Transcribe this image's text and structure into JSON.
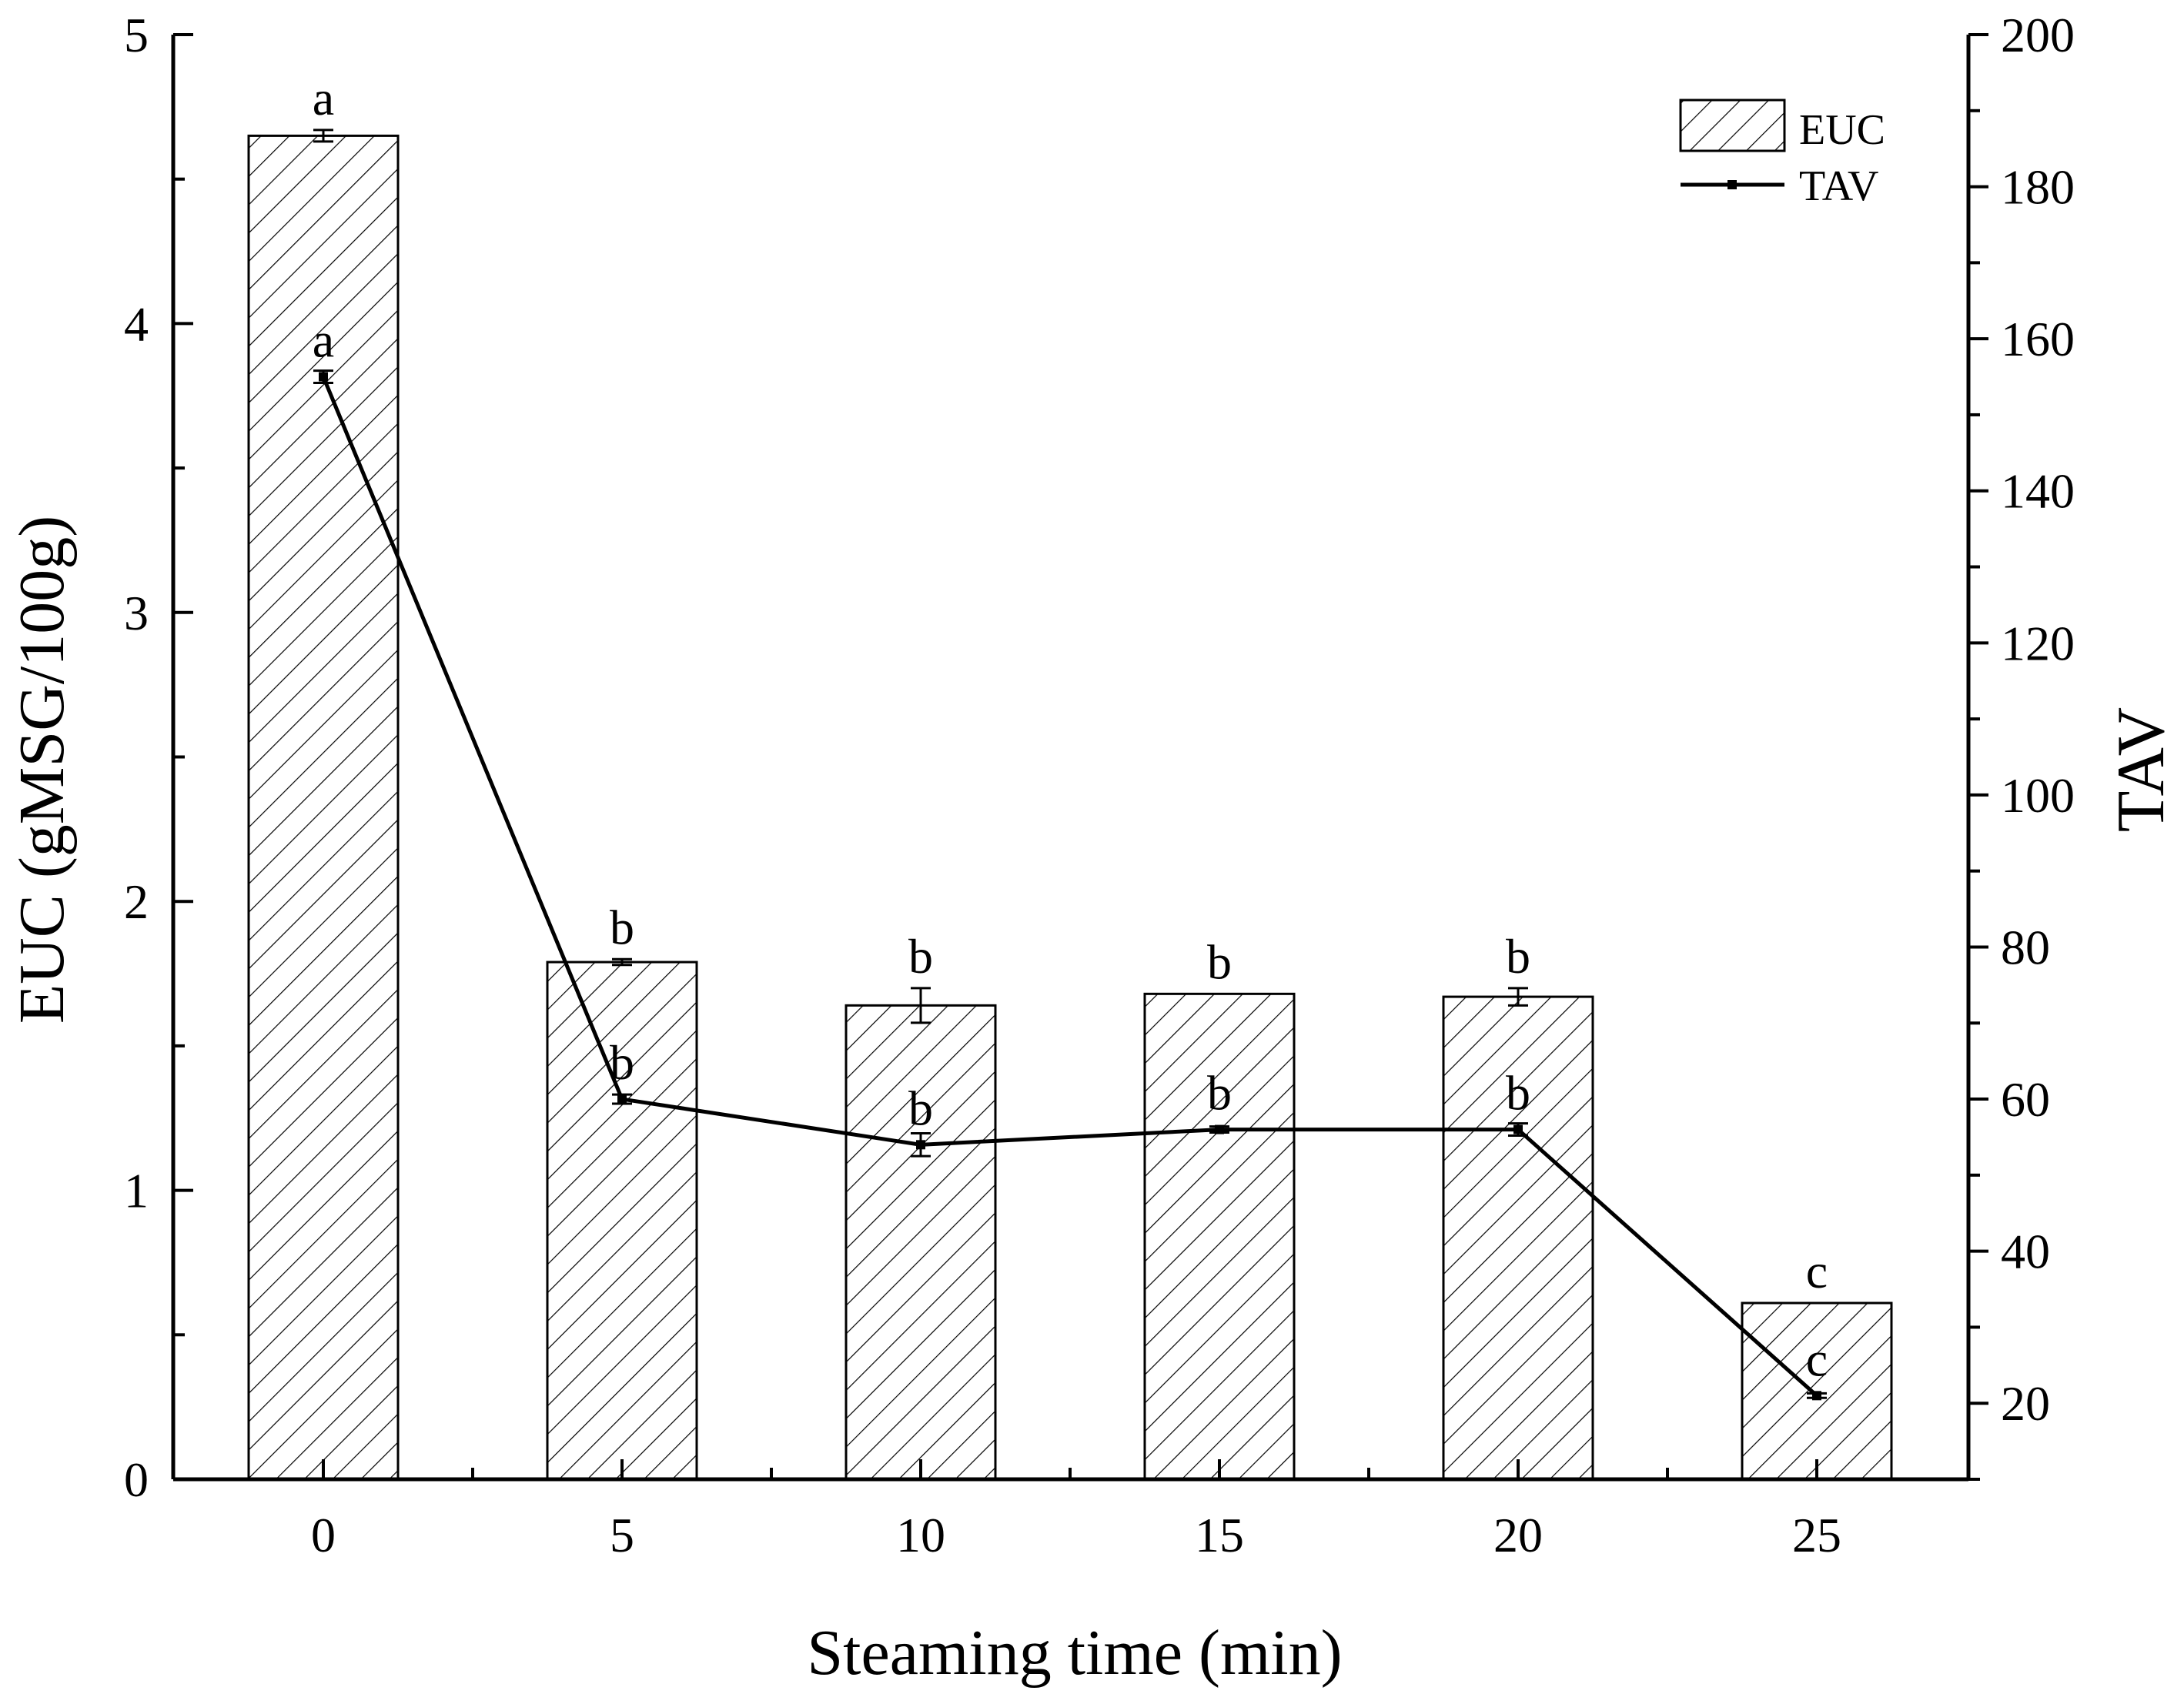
{
  "chart_data": {
    "type": "bar",
    "categories": [
      "0",
      "5",
      "10",
      "15",
      "20",
      "25"
    ],
    "xlabel": "Steaming time (min)",
    "ylabel": "EUC (gMSG/100g)",
    "ylabel_right": "TAV",
    "ylim": [
      0,
      5
    ],
    "ylim_right": [
      10,
      200
    ],
    "yticks": [
      "0",
      "1",
      "2",
      "3",
      "4",
      "5"
    ],
    "yticks_right": [
      "20",
      "40",
      "60",
      "80",
      "100",
      "120",
      "140",
      "160",
      "180",
      "200"
    ],
    "series": [
      {
        "name": "EUC",
        "type": "bar",
        "axis": "left",
        "pattern": "hatched",
        "values": [
          4.65,
          1.79,
          1.64,
          1.68,
          1.67,
          0.61
        ],
        "errors": [
          0.02,
          0.01,
          0.06,
          0.0,
          0.03,
          0.0
        ],
        "letters": [
          "a",
          "b",
          "b",
          "b",
          "b",
          "c"
        ]
      },
      {
        "name": "TAV",
        "type": "line",
        "axis": "right",
        "color": "#000000",
        "values": [
          155,
          60,
          54,
          56,
          56,
          21
        ],
        "errors": [
          0.8,
          0.6,
          1.5,
          0.4,
          0.8,
          0.3
        ],
        "letters": [
          "a",
          "b",
          "b",
          "b",
          "b",
          "c"
        ]
      }
    ],
    "legend": {
      "position": "top-right",
      "items": [
        "EUC",
        "TAV"
      ]
    }
  }
}
